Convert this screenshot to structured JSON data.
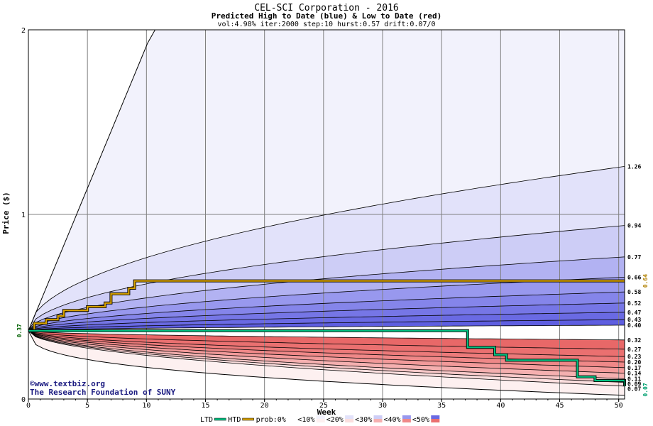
{
  "chart_data": {
    "type": "area",
    "title": "CEL-SCI Corporation - 2016",
    "subtitle": "Predicted High to Date (blue) &  Low to Date (red)",
    "params_line": "vol:4.98% iter:2000 step:10 hurst:0.57 drift:0.07/0",
    "xlabel": "Week",
    "ylabel": "Price ($)",
    "xlim": [
      0,
      50.5
    ],
    "ylim": [
      0,
      2
    ],
    "x_ticks": [
      0,
      5,
      10,
      15,
      20,
      25,
      30,
      35,
      40,
      45,
      50
    ],
    "y_ticks": [
      0,
      1,
      2
    ],
    "grid": true,
    "start_price": 0.37,
    "start_price_label": "0.37",
    "high_band_values": [
      1.26,
      0.94,
      0.77,
      0.66,
      0.58,
      0.52,
      0.47,
      0.43,
      0.4
    ],
    "low_band_values": [
      0.32,
      0.27,
      0.23,
      0.2,
      0.17,
      0.14,
      0.11,
      0.09,
      0.07
    ],
    "high_band_labels": [
      "1.26",
      "0.94",
      "0.77",
      "0.66",
      "0.58",
      "0.52",
      "0.47",
      "0.43",
      "0.40"
    ],
    "low_band_labels": [
      "0.32",
      "0.27",
      "0.23",
      "0.20",
      "0.17",
      "0.14",
      "0.11",
      "0.09",
      "0.07"
    ],
    "htd_series": {
      "name": "HTD",
      "x": [
        0,
        0.5,
        1.5,
        2.5,
        3.0,
        5.0,
        6.5,
        7.0,
        8.5,
        9.0,
        50.5
      ],
      "values": [
        0.37,
        0.41,
        0.43,
        0.45,
        0.48,
        0.5,
        0.52,
        0.57,
        0.6,
        0.64,
        0.64
      ],
      "end_label": "0.64",
      "color": "#d7a100"
    },
    "ltd_series": {
      "name": "LTD",
      "x": [
        0,
        37.0,
        37.2,
        39.0,
        39.5,
        40.5,
        46.0,
        46.5,
        48.0,
        50.5
      ],
      "values": [
        0.37,
        0.37,
        0.28,
        0.28,
        0.24,
        0.21,
        0.21,
        0.12,
        0.1,
        0.07
      ],
      "end_label": "0.07",
      "color": "#00c080"
    },
    "legend": [
      "LTD",
      "HTD",
      "prob:0%",
      "<10%",
      "<20%",
      "<30%",
      "<40%",
      "<50%"
    ],
    "watermark": [
      "©www.textbiz.org",
      "The Research Foundation of SUNY"
    ],
    "colors": {
      "htd": "#d7a100",
      "ltd": "#00c080",
      "blue_fill": [
        "#f2f2fc",
        "#e2e2fa",
        "#cdcdf6",
        "#b2b2f2",
        "#9898ee",
        "#8585ea",
        "#7676e6",
        "#6a6ae3",
        "#5e5ee0"
      ],
      "red_fill": [
        "#fdf0f0",
        "#fbdede",
        "#f8c8c8",
        "#f5b0b0",
        "#f29a9a",
        "#ef8888",
        "#ec7a7a",
        "#ea7070",
        "#e86868"
      ],
      "grid": "#808080"
    }
  }
}
